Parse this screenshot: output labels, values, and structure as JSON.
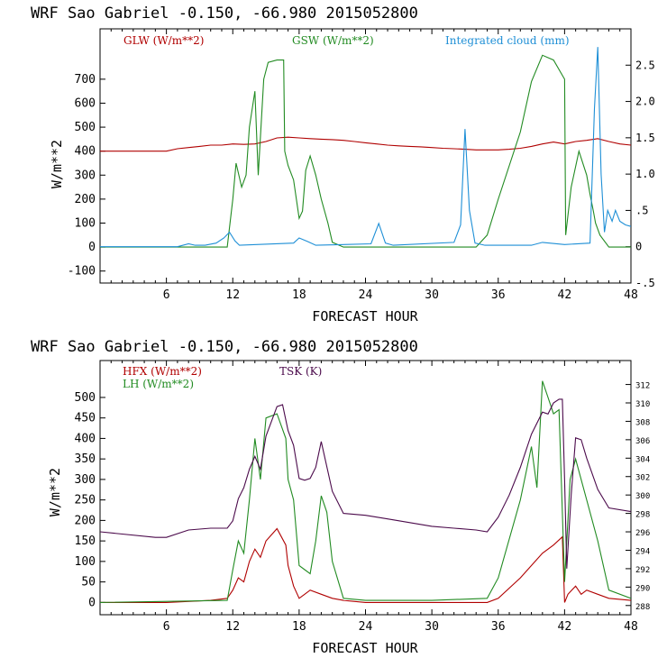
{
  "chart_data": [
    {
      "type": "line",
      "title": "WRF   Sao Gabriel   -0.150, -66.980  2015052800",
      "xlabel": "FORECAST HOUR",
      "ylabel": "W/m**2",
      "y2label": "",
      "xlim": [
        0,
        48
      ],
      "ylim": [
        -150,
        910
      ],
      "y2lim": [
        -0.5,
        3.0
      ],
      "xticks": [
        "6",
        "12",
        "18",
        "24",
        "30",
        "36",
        "42",
        "48"
      ],
      "yticks": [
        "-100",
        "0",
        "100",
        "200",
        "300",
        "400",
        "500",
        "600",
        "700"
      ],
      "y2ticks": [
        "-.5",
        "0",
        ".5",
        "1.0",
        "1.5",
        "2.0",
        "2.5"
      ],
      "legend": [
        "GLW (W/m**2)",
        "GSW (W/m**2)",
        "Integrated cloud (mm)"
      ],
      "series": [
        {
          "name": "GLW (W/m**2)",
          "color": "#b00000",
          "axis": "left",
          "x": [
            0,
            5,
            6,
            7,
            8,
            9,
            10,
            11,
            12,
            13,
            14,
            15,
            16,
            17,
            18,
            19,
            20,
            21,
            22,
            23,
            24,
            25,
            26,
            27,
            28,
            29,
            30,
            31,
            32,
            33,
            34,
            35,
            36,
            37,
            38,
            39,
            40,
            41,
            42,
            43,
            44,
            45,
            46,
            47,
            48
          ],
          "y": [
            400,
            400,
            400,
            410,
            415,
            420,
            425,
            425,
            430,
            428,
            430,
            440,
            455,
            458,
            455,
            452,
            450,
            448,
            445,
            440,
            435,
            430,
            425,
            422,
            420,
            418,
            415,
            412,
            410,
            408,
            405,
            405,
            405,
            408,
            412,
            420,
            430,
            438,
            430,
            440,
            445,
            452,
            440,
            430,
            425
          ]
        },
        {
          "name": "GSW (W/m**2)",
          "color": "#228b22",
          "axis": "left",
          "x": [
            0,
            11.5,
            12,
            12.3,
            12.8,
            13.2,
            13.5,
            14,
            14.3,
            14.8,
            15.2,
            16,
            16.6,
            16.7,
            17,
            17.5,
            18,
            18.3,
            18.6,
            19,
            19.5,
            20,
            20.6,
            21,
            22,
            22.4,
            30,
            34,
            35,
            36,
            38,
            39,
            40,
            41,
            42,
            42.1,
            42.6,
            43.3,
            44,
            44.3,
            44.6,
            44.8,
            45.2,
            46,
            48
          ],
          "y": [
            0,
            0,
            200,
            350,
            250,
            300,
            500,
            650,
            300,
            700,
            770,
            780,
            780,
            400,
            340,
            280,
            120,
            150,
            320,
            380,
            300,
            200,
            100,
            20,
            0,
            0,
            0,
            0,
            50,
            200,
            480,
            690,
            800,
            780,
            700,
            50,
            250,
            400,
            300,
            220,
            150,
            100,
            50,
            0,
            0
          ]
        },
        {
          "name": "Integrated cloud (mm)",
          "color": "#1e8fd6",
          "axis": "right",
          "x": [
            0,
            7,
            8,
            8.6,
            9.5,
            10.5,
            11.2,
            11.7,
            12.2,
            12.6,
            17.5,
            18,
            18.8,
            19.5,
            24.5,
            25.2,
            25.8,
            26.5,
            32,
            32.6,
            33,
            33.4,
            33.9,
            34.8,
            36,
            39,
            40,
            42,
            44.3,
            44.7,
            45,
            45.3,
            45.6,
            45.9,
            46.3,
            46.6,
            47,
            47.5,
            48
          ],
          "y": [
            0,
            0,
            0.04,
            0.02,
            0.02,
            0.05,
            0.12,
            0.2,
            0.08,
            0.02,
            0.05,
            0.12,
            0.07,
            0.02,
            0.04,
            0.32,
            0.05,
            0.02,
            0.06,
            0.3,
            1.62,
            0.5,
            0.05,
            0.02,
            0.02,
            0.02,
            0.06,
            0.03,
            0.05,
            1.9,
            2.75,
            1.0,
            0.2,
            0.5,
            0.35,
            0.5,
            0.35,
            0.3,
            0.28
          ]
        }
      ]
    },
    {
      "type": "line",
      "title": "WRF   Sao Gabriel   -0.150, -66.980  2015052800",
      "xlabel": "FORECAST HOUR",
      "ylabel": "W/m**2",
      "xlim": [
        0,
        48
      ],
      "ylim": [
        -30,
        590
      ],
      "y2lim": [
        287.0,
        314.6
      ],
      "xticks": [
        "6",
        "12",
        "18",
        "24",
        "30",
        "36",
        "42",
        "48"
      ],
      "yticks": [
        "0",
        "50",
        "100",
        "150",
        "200",
        "250",
        "300",
        "350",
        "400",
        "450",
        "500"
      ],
      "y2ticks": [
        "288",
        "290",
        "292",
        "294",
        "296",
        "298",
        "300",
        "302",
        "304",
        "306",
        "308",
        "310",
        "312"
      ],
      "legend": [
        "HFX (W/m**2)",
        "LH  (W/m**2)",
        "TSK (K)"
      ],
      "series": [
        {
          "name": "HFX (W/m**2)",
          "color": "#b00000",
          "axis": "left",
          "x": [
            0,
            6,
            10,
            11.5,
            12,
            12.5,
            13,
            13.5,
            14,
            14.5,
            15,
            16,
            16.8,
            17,
            17.5,
            18,
            18.5,
            19,
            20,
            21,
            22,
            24,
            30,
            35,
            36,
            38,
            40,
            41,
            41.8,
            42,
            42.3,
            43,
            43.5,
            44,
            45,
            46,
            48
          ],
          "y": [
            0,
            0,
            5,
            10,
            30,
            60,
            50,
            100,
            130,
            110,
            150,
            180,
            140,
            90,
            40,
            10,
            20,
            30,
            20,
            10,
            5,
            0,
            0,
            0,
            10,
            60,
            120,
            140,
            160,
            0,
            20,
            40,
            20,
            30,
            20,
            10,
            5
          ]
        },
        {
          "name": "LH  (W/m**2)",
          "color": "#228b22",
          "axis": "left",
          "x": [
            0,
            11.5,
            12,
            12.5,
            13,
            13.5,
            14,
            14.5,
            15,
            16,
            16.8,
            17,
            17.5,
            18,
            18.5,
            19,
            19.5,
            20,
            20.5,
            21,
            22,
            24,
            30,
            35,
            36,
            38,
            39,
            39.5,
            40,
            40.5,
            41,
            41.5,
            42,
            42.5,
            43,
            44,
            45,
            46,
            48
          ],
          "y": [
            0,
            5,
            80,
            150,
            120,
            250,
            400,
            300,
            450,
            460,
            400,
            300,
            250,
            90,
            80,
            70,
            150,
            260,
            220,
            100,
            10,
            5,
            5,
            10,
            60,
            250,
            380,
            280,
            540,
            500,
            460,
            470,
            50,
            300,
            350,
            250,
            150,
            30,
            10
          ]
        },
        {
          "name": "TSK (K)",
          "color": "#4b0a4b",
          "axis": "right",
          "x": [
            0,
            5,
            6,
            8,
            10,
            11.5,
            12,
            12.5,
            13,
            13.5,
            14,
            14.5,
            15,
            16,
            16.5,
            17,
            17.5,
            18,
            18.5,
            19,
            19.5,
            20,
            21,
            22,
            24,
            26,
            28,
            30,
            32,
            34,
            35,
            36,
            37,
            38,
            39,
            40,
            40.5,
            41,
            41.5,
            41.8,
            42,
            42.2,
            42.6,
            43,
            43.5,
            44,
            45,
            46,
            48
          ],
          "y": [
            296.0,
            295.4,
            295.4,
            296.2,
            296.4,
            296.4,
            297.2,
            299.6,
            300.8,
            302.8,
            304.2,
            302.8,
            306.4,
            309.6,
            309.8,
            307.0,
            305.4,
            301.8,
            301.6,
            301.8,
            303.0,
            305.8,
            300.4,
            298.0,
            297.8,
            297.4,
            297.0,
            296.6,
            296.4,
            296.2,
            296.0,
            297.6,
            300.0,
            303.0,
            306.6,
            309.0,
            308.8,
            310.0,
            310.4,
            310.4,
            301.6,
            292.0,
            300.0,
            306.2,
            306.0,
            304.0,
            300.6,
            298.6,
            298.2
          ]
        }
      ]
    }
  ]
}
